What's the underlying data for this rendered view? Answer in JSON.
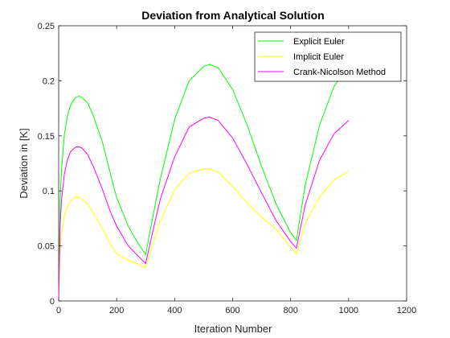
{
  "chart_data": {
    "type": "line",
    "title": "Deviation from Analytical Solution",
    "xlabel": "Iteration Number",
    "ylabel": "Deviation in [K]",
    "xlim": [
      0,
      1200
    ],
    "ylim": [
      0,
      0.25
    ],
    "xticks": [
      0,
      200,
      400,
      600,
      800,
      1000,
      1200
    ],
    "xtick_labels": [
      "0",
      "200",
      "400",
      "600",
      "800",
      "1000",
      "1200"
    ],
    "yticks": [
      0,
      0.05,
      0.1,
      0.15,
      0.2,
      0.25
    ],
    "ytick_labels": [
      "0",
      "0.05",
      "0.1",
      "0.15",
      "0.2",
      "0.25"
    ],
    "grid": false,
    "legend_position": "top-right",
    "series": [
      {
        "name": "Explicit Euler",
        "color": "#00ff00",
        "x": [
          0,
          5,
          10,
          20,
          30,
          40,
          50,
          60,
          70,
          80,
          100,
          120,
          150,
          180,
          200,
          240,
          270,
          300,
          320,
          350,
          400,
          450,
          500,
          520,
          550,
          600,
          650,
          700,
          750,
          800,
          820,
          850,
          900,
          950,
          1000
        ],
        "y": [
          0,
          0.09,
          0.12,
          0.152,
          0.168,
          0.177,
          0.182,
          0.185,
          0.186,
          0.185,
          0.18,
          0.168,
          0.145,
          0.114,
          0.094,
          0.068,
          0.054,
          0.042,
          0.07,
          0.11,
          0.165,
          0.2,
          0.213,
          0.215,
          0.212,
          0.192,
          0.16,
          0.122,
          0.088,
          0.062,
          0.055,
          0.105,
          0.16,
          0.195,
          0.214
        ]
      },
      {
        "name": "Implicit Euler",
        "color": "#ffff00",
        "x": [
          0,
          5,
          10,
          20,
          30,
          40,
          50,
          60,
          70,
          80,
          100,
          120,
          150,
          180,
          200,
          240,
          270,
          300,
          320,
          350,
          400,
          450,
          500,
          520,
          550,
          600,
          650,
          700,
          750,
          800,
          820,
          850,
          900,
          950,
          1000
        ],
        "y": [
          0,
          0.045,
          0.062,
          0.078,
          0.086,
          0.09,
          0.093,
          0.094,
          0.094,
          0.093,
          0.088,
          0.08,
          0.066,
          0.051,
          0.043,
          0.037,
          0.034,
          0.03,
          0.048,
          0.072,
          0.101,
          0.116,
          0.12,
          0.12,
          0.117,
          0.104,
          0.089,
          0.076,
          0.065,
          0.049,
          0.043,
          0.07,
          0.095,
          0.11,
          0.118
        ]
      },
      {
        "name": "Crank-Nicolson Method",
        "color": "#ff00ff",
        "x": [
          0,
          5,
          10,
          20,
          30,
          40,
          50,
          60,
          70,
          80,
          100,
          120,
          150,
          180,
          200,
          240,
          270,
          300,
          320,
          350,
          400,
          450,
          500,
          520,
          550,
          600,
          650,
          700,
          750,
          800,
          820,
          850,
          900,
          950,
          1000
        ],
        "y": [
          0,
          0.068,
          0.092,
          0.116,
          0.128,
          0.135,
          0.138,
          0.14,
          0.14,
          0.139,
          0.133,
          0.122,
          0.102,
          0.08,
          0.068,
          0.05,
          0.042,
          0.034,
          0.058,
          0.092,
          0.131,
          0.158,
          0.166,
          0.167,
          0.164,
          0.148,
          0.124,
          0.098,
          0.073,
          0.054,
          0.048,
          0.087,
          0.128,
          0.152,
          0.164
        ]
      }
    ]
  }
}
